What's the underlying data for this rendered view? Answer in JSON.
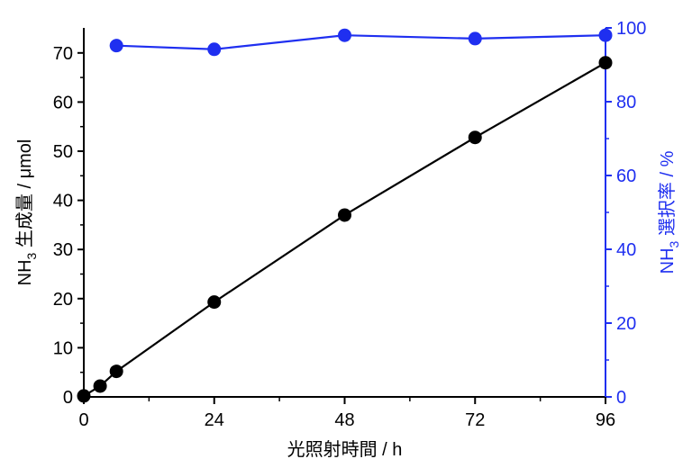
{
  "chart_data": {
    "type": "line",
    "x": [
      0,
      3,
      6,
      24,
      48,
      72,
      96
    ],
    "xlabel": "光照射時間 / h",
    "xticks": [
      0,
      24,
      48,
      72,
      96
    ],
    "xlim": [
      0,
      96
    ],
    "ylabel_left": {
      "main": "NH",
      "sub": "3",
      "rest": " 生成量 / μmol"
    },
    "ylabel_right": {
      "main": "NH",
      "sub": "3",
      "rest": " 選択率 / %"
    },
    "ylim_left": [
      0,
      75
    ],
    "yticks_left": [
      0,
      10,
      20,
      30,
      40,
      50,
      60,
      70
    ],
    "ylim_right": [
      0,
      100
    ],
    "yticks_right": [
      0,
      20,
      40,
      60,
      80,
      100
    ],
    "series": [
      {
        "axis": "left",
        "color": "#000000",
        "points": [
          [
            0,
            0.2
          ],
          [
            3,
            2.2
          ],
          [
            6,
            5.2
          ],
          [
            24,
            19.3
          ],
          [
            48,
            37.0
          ],
          [
            72,
            52.8
          ],
          [
            96,
            68.0
          ]
        ]
      },
      {
        "axis": "right",
        "color": "#1f2ff0",
        "points": [
          [
            6,
            95.2
          ],
          [
            24,
            94.2
          ],
          [
            48,
            98.0
          ],
          [
            72,
            97.1
          ],
          [
            96,
            98.0
          ]
        ]
      }
    ]
  }
}
